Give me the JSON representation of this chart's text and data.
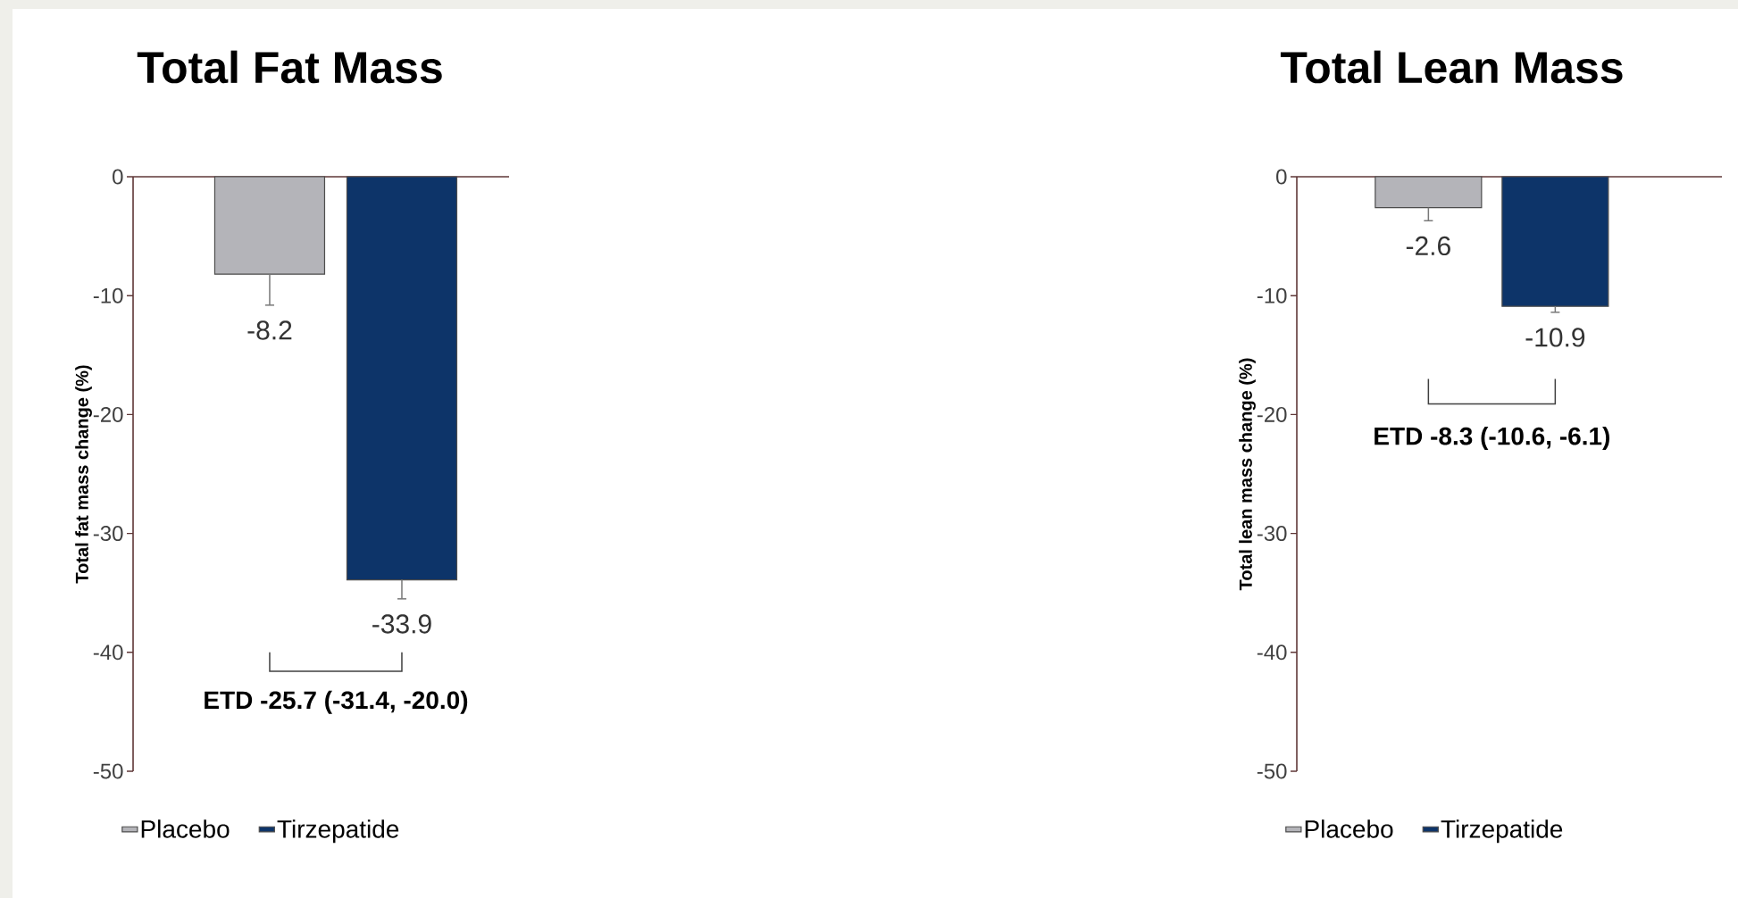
{
  "chart_data": [
    {
      "type": "bar",
      "title": "Total Fat Mass",
      "ylabel": "Total fat mass change (%)",
      "categories": [
        null
      ],
      "series": [
        {
          "name": "Placebo",
          "color": "#b4b4b9",
          "values": [
            -8.2
          ],
          "errors": [
            [
              -10.8,
              -8.2
            ]
          ]
        },
        {
          "name": "Tirzepatide",
          "color": "#0d3469",
          "values": [
            -33.9
          ],
          "errors": [
            [
              -35.5,
              -33.9
            ]
          ]
        }
      ],
      "ylim": [
        -50,
        0
      ],
      "yticks": [
        -50,
        -40,
        -30,
        -20,
        -10,
        0
      ],
      "data_labels": true,
      "legend": "bottom",
      "annotations": [
        "ETD -25.7 (-31.4, -20.0)"
      ]
    },
    {
      "type": "bar",
      "title": "Total Lean Mass",
      "ylabel": "Total lean mass change (%)",
      "categories": [
        null
      ],
      "series": [
        {
          "name": "Placebo",
          "color": "#b4b4b9",
          "values": [
            -2.6
          ],
          "errors": [
            [
              -3.7,
              -2.6
            ]
          ]
        },
        {
          "name": "Tirzepatide",
          "color": "#0d3469",
          "values": [
            -10.9
          ],
          "errors": [
            [
              -11.4,
              -10.9
            ]
          ]
        }
      ],
      "ylim": [
        -50,
        0
      ],
      "yticks": [
        -50,
        -40,
        -30,
        -20,
        -10,
        0
      ],
      "data_labels": true,
      "legend": "bottom",
      "annotations": [
        "ETD -8.3 (-10.6, -6.1)"
      ]
    }
  ]
}
